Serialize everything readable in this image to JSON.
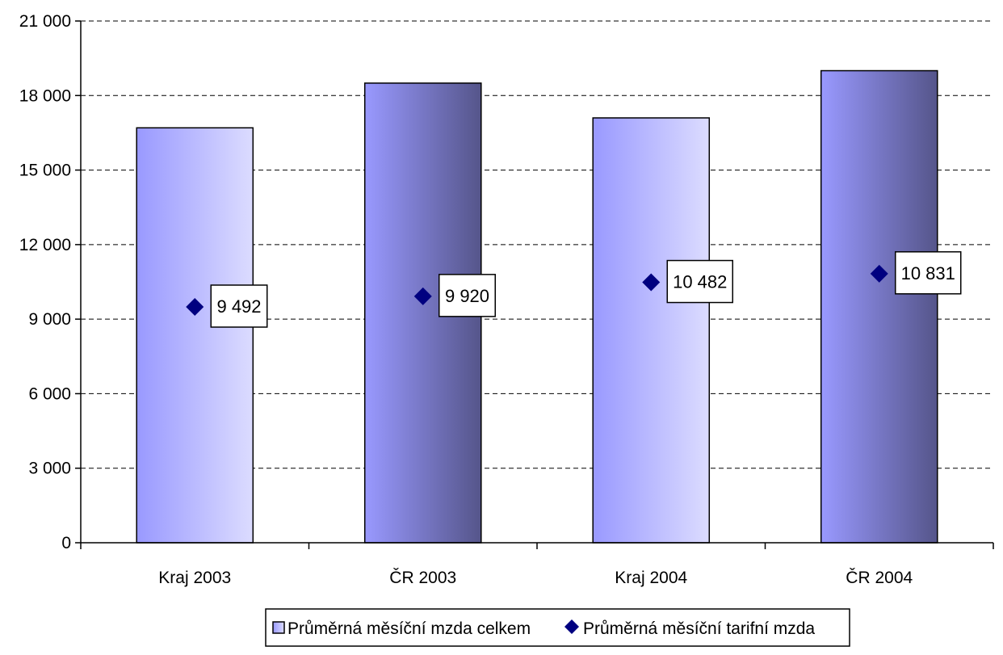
{
  "chart_data": {
    "type": "bar",
    "title": "",
    "xlabel": "",
    "ylabel": "",
    "categories": [
      "Kraj 2003",
      "ČR 2003",
      "Kraj 2004",
      "ČR 2004"
    ],
    "ylim": [
      0,
      21000
    ],
    "yticks": [
      0,
      3000,
      6000,
      9000,
      12000,
      15000,
      18000,
      21000
    ],
    "ytick_labels": [
      "0",
      "3 000",
      "6 000",
      "9 000",
      "12 000",
      "15 000",
      "18 000",
      "21 000"
    ],
    "grid": "horizontal-dashed",
    "legend_position": "bottom",
    "series": [
      {
        "name": "Průměrná měsíční mzda celkem",
        "type": "bar",
        "values": [
          16700,
          18500,
          17100,
          19000
        ],
        "bar_styles": [
          "light",
          "dark",
          "light",
          "dark"
        ],
        "colors": {
          "light": [
            "#9999ff",
            "#dcdcff"
          ],
          "dark": [
            "#9999ff",
            "#55558a"
          ]
        }
      },
      {
        "name": "Průměrná měsíční tarifní mzda",
        "type": "marker",
        "marker": "diamond",
        "color": "#000080",
        "values": [
          9492,
          9920,
          10482,
          10831
        ],
        "data_labels": [
          "9 492",
          "9 920",
          "10 482",
          "10 831"
        ]
      }
    ]
  }
}
